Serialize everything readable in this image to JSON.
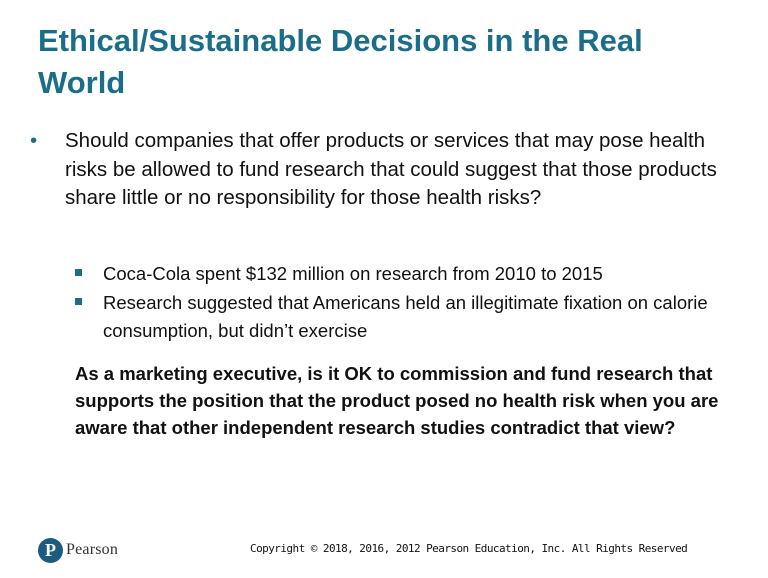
{
  "slide": {
    "title": "Ethical/Sustainable Decisions in the Real World",
    "main_bullet": {
      "marker": "•",
      "text": "Should companies that offer products or services that may pose health risks be allowed to fund research that could suggest that those products share little or no responsibility for those health risks?"
    },
    "sub_bullets": [
      {
        "text": "Coca-Cola spent $132 million on research from 2010 to 2015"
      },
      {
        "text": "Research suggested that Americans held an illegitimate fixation on calorie consumption, but didn’t exercise"
      }
    ],
    "question": "As a marketing executive, is it OK to commission and fund research that supports the position that the product posed no health risk when you are aware that other independent research studies contradict that view?"
  },
  "footer": {
    "logo_text": "Pearson",
    "copyright": "Copyright © 2018, 2016, 2012 Pearson Education, Inc. All Rights Reserved"
  },
  "colors": {
    "title": "#1a6e8a",
    "bullet_accent": "#1a6e8a",
    "logo": "#1b5b7e"
  },
  "icons": {
    "logo": "pearson-logo-icon"
  }
}
